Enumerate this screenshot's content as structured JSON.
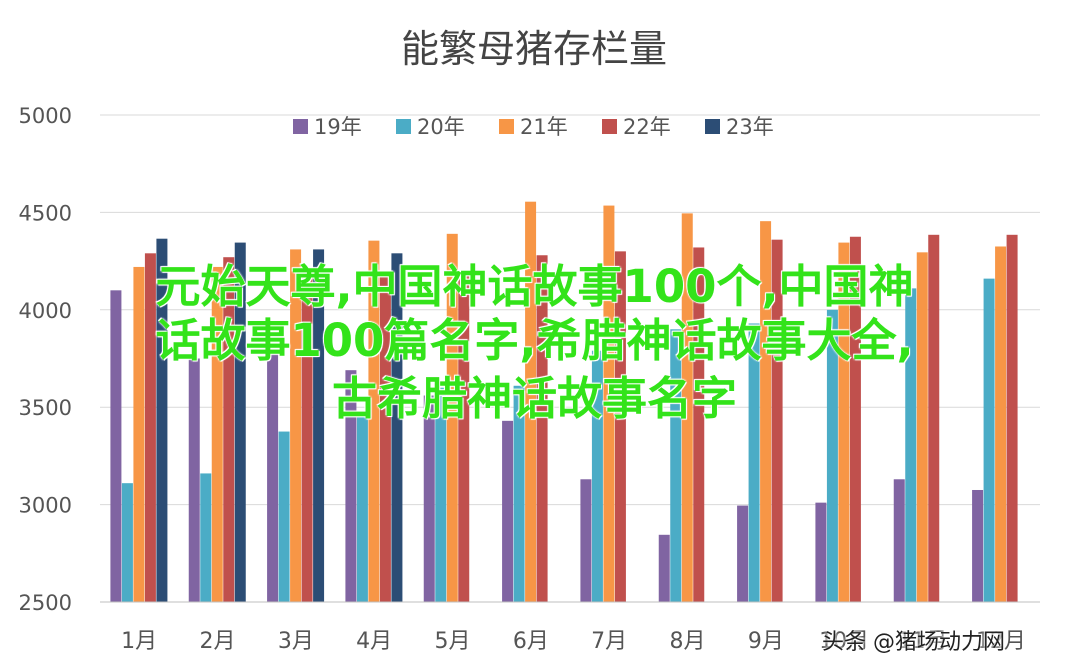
{
  "chart_data": {
    "type": "bar",
    "title": "能繁母猪存栏量",
    "categories": [
      "1月",
      "2月",
      "3月",
      "4月",
      "5月",
      "6月",
      "7月",
      "8月",
      "9月",
      "10月",
      "11月",
      "12月"
    ],
    "series": [
      {
        "name": "19年",
        "color": "#8064a2",
        "values": [
          4100,
          3750,
          3790,
          3690,
          3560,
          3430,
          3130,
          2845,
          2995,
          3010,
          3130,
          3075
        ]
      },
      {
        "name": "20年",
        "color": "#4bacc6",
        "values": [
          3110,
          3160,
          3375,
          3480,
          3600,
          3610,
          3790,
          3900,
          3930,
          4000,
          4110,
          4160
        ]
      },
      {
        "name": "21年",
        "color": "#f79646",
        "values": [
          4220,
          4220,
          4310,
          4355,
          4390,
          4555,
          4535,
          4495,
          4455,
          4345,
          4295,
          4325
        ]
      },
      {
        "name": "22年",
        "color": "#c0504d",
        "values": [
          4290,
          4270,
          4180,
          4190,
          4185,
          4280,
          4300,
          4320,
          4360,
          4375,
          4385,
          4385
        ]
      },
      {
        "name": "23年",
        "color": "#2c4d75",
        "values": [
          4365,
          4345,
          4310,
          4290,
          null,
          null,
          null,
          null,
          null,
          null,
          null,
          null
        ]
      }
    ],
    "ylim": [
      2500,
      5000
    ],
    "yticks": [
      2500,
      3000,
      3500,
      4000,
      4500,
      5000
    ],
    "grid": true,
    "legend": "top"
  },
  "overlay": {
    "line1": "元始天尊,中国神话故事100个,中国神",
    "line2": "话故事100篇名字,希腊神话故事大全,",
    "line3": "古希腊神话故事名字"
  },
  "watermark": "头条 @猪场动力网"
}
